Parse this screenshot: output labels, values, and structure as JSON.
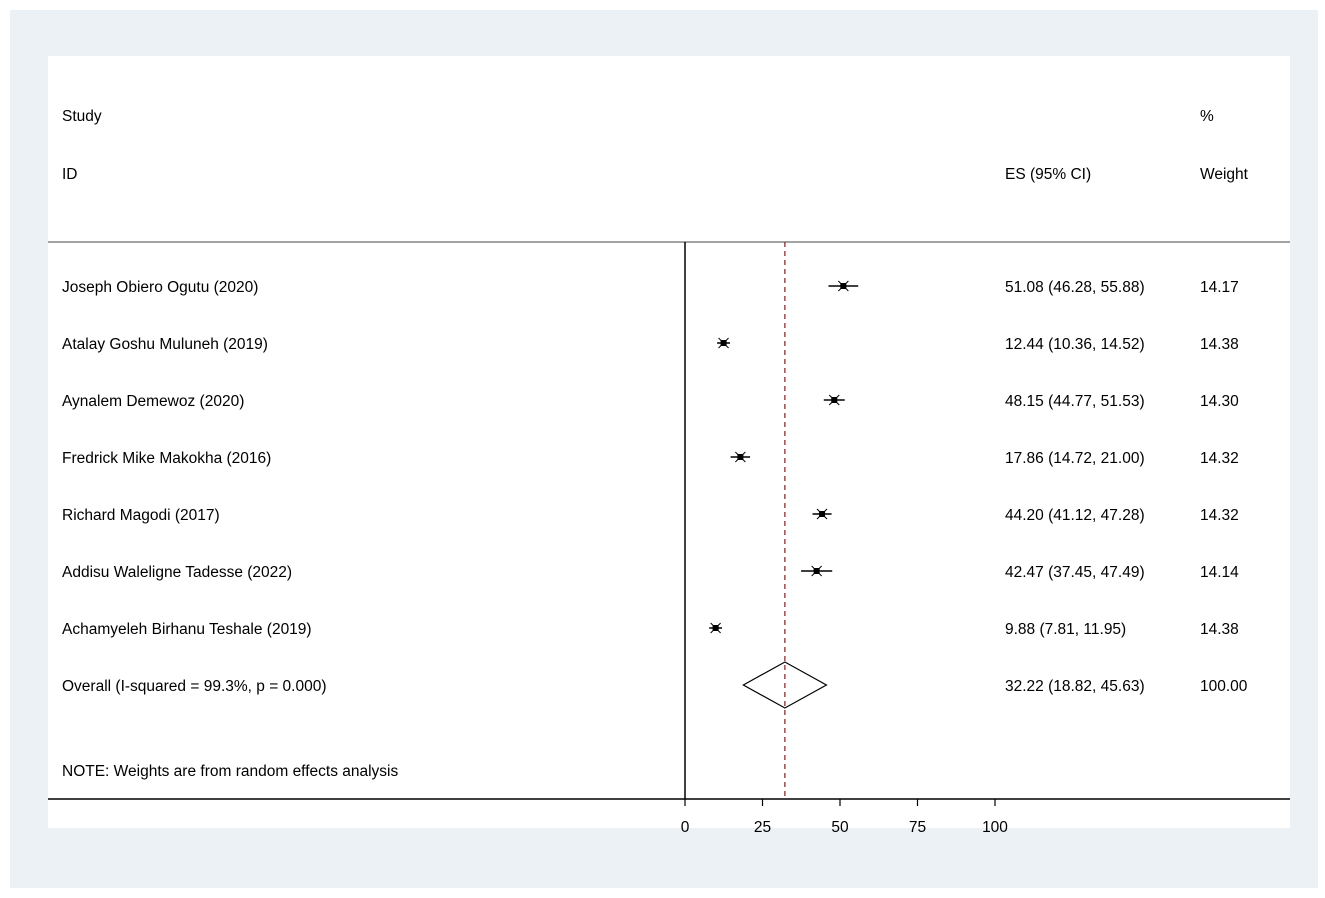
{
  "chart_data": {
    "type": "forest",
    "headers": {
      "study_line1": "Study",
      "study_line2": "ID",
      "es_label": "ES (95% CI)",
      "weight_line1": "%",
      "weight_line2": "Weight"
    },
    "studies": [
      {
        "name": "Joseph Obiero Ogutu (2020)",
        "es": 51.08,
        "lo": 46.28,
        "hi": 55.88,
        "ci_text": "51.08 (46.28, 55.88)",
        "weight": "14.17"
      },
      {
        "name": "Atalay Goshu Muluneh (2019)",
        "es": 12.44,
        "lo": 10.36,
        "hi": 14.52,
        "ci_text": "12.44 (10.36, 14.52)",
        "weight": "14.38"
      },
      {
        "name": "Aynalem Demewoz (2020)",
        "es": 48.15,
        "lo": 44.77,
        "hi": 51.53,
        "ci_text": "48.15 (44.77, 51.53)",
        "weight": "14.30"
      },
      {
        "name": "Fredrick Mike Makokha (2016)",
        "es": 17.86,
        "lo": 14.72,
        "hi": 21.0,
        "ci_text": "17.86 (14.72, 21.00)",
        "weight": "14.32"
      },
      {
        "name": "Richard Magodi (2017)",
        "es": 44.2,
        "lo": 41.12,
        "hi": 47.28,
        "ci_text": "44.20 (41.12, 47.28)",
        "weight": "14.32"
      },
      {
        "name": "Addisu Waleligne Tadesse (2022)",
        "es": 42.47,
        "lo": 37.45,
        "hi": 47.49,
        "ci_text": "42.47 (37.45, 47.49)",
        "weight": "14.14"
      },
      {
        "name": "Achamyeleh Birhanu Teshale (2019)",
        "es": 9.88,
        "lo": 7.81,
        "hi": 11.95,
        "ci_text": "9.88 (7.81, 11.95)",
        "weight": "14.38"
      }
    ],
    "overall": {
      "label": "Overall  (I-squared = 99.3%, p = 0.000)",
      "es": 32.22,
      "lo": 18.82,
      "hi": 45.63,
      "ci_text": "32.22 (18.82, 45.63)",
      "weight": "100.00"
    },
    "note": "NOTE: Weights are from random effects analysis",
    "x_ticks": [
      0,
      25,
      50,
      75,
      100
    ],
    "xlim": [
      0,
      100
    ],
    "null_line": 0,
    "overall_line_color": "#8b1a1a"
  }
}
